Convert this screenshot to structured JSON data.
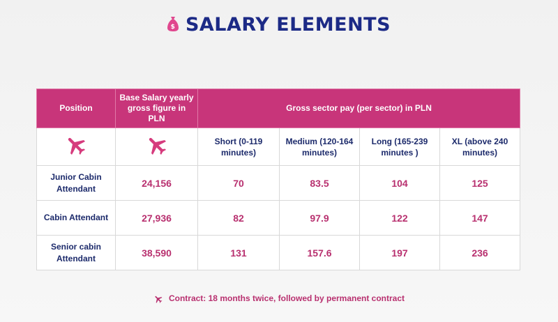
{
  "title": "SALARY ELEMENTS",
  "icons": {
    "title": "money-bag-icon",
    "cells": "airplane-icon",
    "footer": "airplane-icon"
  },
  "colors": {
    "accent": "#c8357a",
    "navy": "#1c2a86"
  },
  "table": {
    "headers": {
      "position": "Position",
      "base_salary": "Base Salary yearly gross figure in PLN",
      "gross_sector": "Gross sector pay (per sector) in PLN"
    },
    "sectors": [
      "Short (0-119 minutes)",
      "Medium (120-164 minutes)",
      "Long (165-239 minutes )",
      "XL (above 240 minutes)"
    ],
    "rows": [
      {
        "position": "Junior Cabin Attendant",
        "base": "24,156",
        "short": "70",
        "medium": "83.5",
        "long": "104",
        "xl": "125"
      },
      {
        "position": "Cabin Attendant",
        "base": "27,936",
        "short": "82",
        "medium": "97.9",
        "long": "122",
        "xl": "147"
      },
      {
        "position": "Senior cabin Attendant",
        "base": "38,590",
        "short": "131",
        "medium": "157.6",
        "long": "197",
        "xl": "236"
      }
    ]
  },
  "footer": "Contract: 18 months twice, followed by permanent contract"
}
